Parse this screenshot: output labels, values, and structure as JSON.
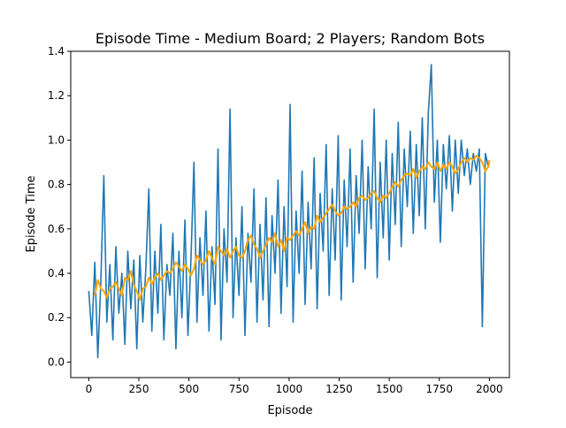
{
  "colors": {
    "raw": "#1f77b4",
    "smoothed": "#ffa500",
    "axes": "#000000",
    "background": "#ffffff"
  },
  "chart_data": {
    "type": "line",
    "title": "Episode Time - Medium Board; 2 Players; Random Bots",
    "xlabel": "Episode",
    "ylabel": "Episode Time",
    "xlim": [
      -90,
      2100
    ],
    "ylim": [
      -0.07,
      1.4
    ],
    "xticks": [
      0,
      250,
      500,
      750,
      1000,
      1250,
      1500,
      1750,
      2000
    ],
    "yticks": [
      0.0,
      0.2,
      0.4,
      0.6,
      0.8,
      1.0,
      1.2,
      1.4
    ],
    "xtick_labels": [
      "0",
      "250",
      "500",
      "750",
      "1000",
      "1250",
      "1500",
      "1750",
      "2000"
    ],
    "ytick_labels": [
      "0.0",
      "0.2",
      "0.4",
      "0.6",
      "0.8",
      "1.0",
      "1.2",
      "1.4"
    ],
    "grid": false,
    "legend": "none",
    "series": [
      {
        "style": "raw",
        "color": "#1f77b4",
        "x": [
          0,
          15,
          30,
          45,
          60,
          75,
          90,
          105,
          120,
          135,
          150,
          165,
          180,
          195,
          210,
          225,
          240,
          255,
          270,
          285,
          300,
          315,
          330,
          345,
          360,
          375,
          390,
          405,
          420,
          435,
          450,
          465,
          480,
          495,
          510,
          525,
          540,
          555,
          570,
          585,
          600,
          615,
          630,
          645,
          660,
          675,
          690,
          705,
          720,
          735,
          750,
          765,
          780,
          795,
          810,
          825,
          840,
          855,
          870,
          885,
          900,
          915,
          930,
          945,
          960,
          975,
          990,
          1005,
          1020,
          1035,
          1050,
          1065,
          1080,
          1095,
          1110,
          1125,
          1140,
          1155,
          1170,
          1185,
          1200,
          1215,
          1230,
          1245,
          1260,
          1275,
          1290,
          1305,
          1320,
          1335,
          1350,
          1365,
          1380,
          1395,
          1410,
          1425,
          1440,
          1455,
          1470,
          1485,
          1500,
          1515,
          1530,
          1545,
          1560,
          1575,
          1590,
          1605,
          1620,
          1635,
          1650,
          1665,
          1680,
          1695,
          1710,
          1725,
          1740,
          1755,
          1770,
          1785,
          1800,
          1815,
          1830,
          1845,
          1860,
          1875,
          1890,
          1905,
          1920,
          1935,
          1950,
          1965,
          1980,
          1995,
          2000
        ],
        "y": [
          0.32,
          0.12,
          0.45,
          0.02,
          0.36,
          0.84,
          0.18,
          0.44,
          0.1,
          0.52,
          0.22,
          0.4,
          0.08,
          0.5,
          0.24,
          0.46,
          0.06,
          0.48,
          0.18,
          0.42,
          0.78,
          0.14,
          0.5,
          0.22,
          0.62,
          0.1,
          0.44,
          0.3,
          0.58,
          0.06,
          0.5,
          0.2,
          0.64,
          0.12,
          0.46,
          0.9,
          0.18,
          0.56,
          0.3,
          0.68,
          0.14,
          0.52,
          0.26,
          0.96,
          0.1,
          0.6,
          0.36,
          1.14,
          0.2,
          0.56,
          0.3,
          0.7,
          0.12,
          0.58,
          0.36,
          0.78,
          0.18,
          0.62,
          0.28,
          0.74,
          0.16,
          0.66,
          0.4,
          0.82,
          0.22,
          0.7,
          0.34,
          1.16,
          0.18,
          0.68,
          0.4,
          0.86,
          0.26,
          0.72,
          0.42,
          0.92,
          0.24,
          0.76,
          0.5,
          0.98,
          0.3,
          0.78,
          0.46,
          1.02,
          0.28,
          0.82,
          0.52,
          0.96,
          0.36,
          0.84,
          0.58,
          1.0,
          0.42,
          0.88,
          0.6,
          1.14,
          0.38,
          0.9,
          0.56,
          1.0,
          0.46,
          0.94,
          0.62,
          1.08,
          0.52,
          0.96,
          0.7,
          1.04,
          0.58,
          0.98,
          0.66,
          1.1,
          0.6,
          1.12,
          1.34,
          0.72,
          1.0,
          0.54,
          0.98,
          0.78,
          1.02,
          0.68,
          1.0,
          0.76,
          1.0,
          0.84,
          0.96,
          0.8,
          0.94,
          0.86,
          0.96,
          0.16,
          0.94,
          0.88,
          0.9
        ]
      },
      {
        "style": "smoothed",
        "color": "#ffa500",
        "x": [
          30,
          45,
          60,
          75,
          90,
          105,
          120,
          135,
          150,
          165,
          180,
          195,
          210,
          225,
          240,
          255,
          270,
          285,
          300,
          315,
          330,
          345,
          360,
          375,
          390,
          405,
          420,
          435,
          450,
          465,
          480,
          495,
          510,
          525,
          540,
          555,
          570,
          585,
          600,
          615,
          630,
          645,
          660,
          675,
          690,
          705,
          720,
          735,
          750,
          765,
          780,
          795,
          810,
          825,
          840,
          855,
          870,
          885,
          900,
          915,
          930,
          945,
          960,
          975,
          990,
          1005,
          1020,
          1035,
          1050,
          1065,
          1080,
          1095,
          1110,
          1125,
          1140,
          1155,
          1170,
          1185,
          1200,
          1215,
          1230,
          1245,
          1260,
          1275,
          1290,
          1305,
          1320,
          1335,
          1350,
          1365,
          1380,
          1395,
          1410,
          1425,
          1440,
          1455,
          1470,
          1485,
          1500,
          1515,
          1530,
          1545,
          1560,
          1575,
          1590,
          1605,
          1620,
          1635,
          1650,
          1665,
          1680,
          1695,
          1710,
          1725,
          1740,
          1755,
          1770,
          1785,
          1800,
          1815,
          1830,
          1845,
          1860,
          1875,
          1890,
          1905,
          1920,
          1935,
          1950,
          1965,
          1980,
          1995,
          2000
        ],
        "y": [
          0.3,
          0.37,
          0.33,
          0.32,
          0.29,
          0.33,
          0.34,
          0.36,
          0.33,
          0.3,
          0.38,
          0.37,
          0.41,
          0.35,
          0.32,
          0.28,
          0.33,
          0.34,
          0.38,
          0.35,
          0.38,
          0.4,
          0.37,
          0.39,
          0.41,
          0.4,
          0.42,
          0.45,
          0.43,
          0.41,
          0.44,
          0.42,
          0.39,
          0.42,
          0.48,
          0.46,
          0.44,
          0.46,
          0.5,
          0.47,
          0.44,
          0.52,
          0.5,
          0.48,
          0.51,
          0.47,
          0.5,
          0.52,
          0.48,
          0.47,
          0.5,
          0.55,
          0.57,
          0.53,
          0.51,
          0.47,
          0.5,
          0.53,
          0.56,
          0.54,
          0.58,
          0.52,
          0.55,
          0.5,
          0.56,
          0.55,
          0.57,
          0.59,
          0.57,
          0.6,
          0.63,
          0.58,
          0.61,
          0.6,
          0.66,
          0.63,
          0.65,
          0.67,
          0.69,
          0.71,
          0.68,
          0.66,
          0.67,
          0.7,
          0.69,
          0.7,
          0.72,
          0.7,
          0.74,
          0.75,
          0.73,
          0.74,
          0.76,
          0.77,
          0.74,
          0.72,
          0.75,
          0.74,
          0.76,
          0.79,
          0.81,
          0.79,
          0.82,
          0.84,
          0.85,
          0.84,
          0.87,
          0.83,
          0.86,
          0.88,
          0.87,
          0.9,
          0.88,
          0.87,
          0.9,
          0.86,
          0.89,
          0.87,
          0.9,
          0.88,
          0.85,
          0.87,
          0.9,
          0.92,
          0.9,
          0.92,
          0.91,
          0.93,
          0.92,
          0.9,
          0.86,
          0.88,
          0.91
        ]
      }
    ]
  }
}
